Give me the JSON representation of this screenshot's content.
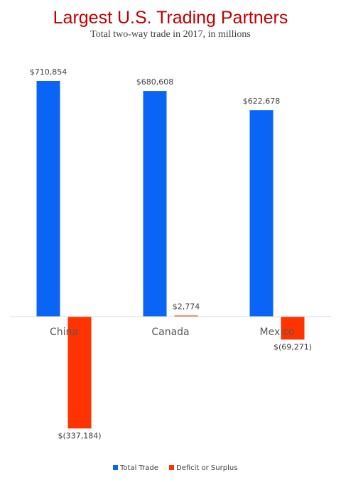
{
  "chart_data": {
    "type": "bar",
    "title": "Largest U.S. Trading Partners",
    "subtitle": "Total two-way trade in 2017, in millions",
    "categories": [
      "China",
      "Canada",
      "Mexico"
    ],
    "series": [
      {
        "name": "Total Trade",
        "color": "#0a64f5",
        "values": [
          710854,
          680608,
          622678
        ],
        "labels": [
          "$710,854",
          "$680,608",
          "$622,678"
        ]
      },
      {
        "name": "Deficit or Surplus",
        "color": "#ff3300",
        "values": [
          -337184,
          2774,
          -69271
        ],
        "labels": [
          "$(337,184)",
          "$2,774",
          "$(69,271)"
        ]
      }
    ],
    "xlabel": "",
    "ylabel": "",
    "ylim": [
      -360000,
      760000
    ],
    "grid": false,
    "legend": "bottom",
    "colors": {
      "title": "#c00000",
      "axis": "#d9d9d9",
      "text": "#404040"
    }
  }
}
